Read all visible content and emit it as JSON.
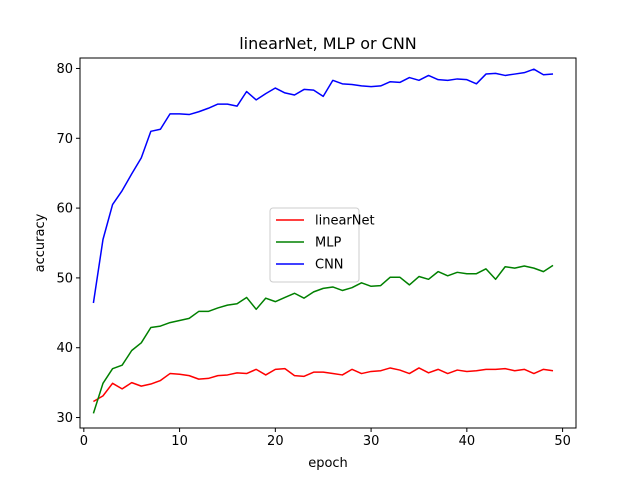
{
  "chart_data": {
    "type": "line",
    "title": "linearNet, MLP or CNN",
    "xlabel": "epoch",
    "ylabel": "accuracy",
    "xlim": [
      -0.4,
      51.4
    ],
    "ylim": [
      28.5,
      81.5
    ],
    "xticks": [
      0,
      10,
      20,
      30,
      40,
      50
    ],
    "yticks": [
      30,
      40,
      50,
      60,
      70,
      80
    ],
    "grid": false,
    "legend": "center-right",
    "x": [
      1,
      2,
      3,
      4,
      5,
      6,
      7,
      8,
      9,
      10,
      11,
      12,
      13,
      14,
      15,
      16,
      17,
      18,
      19,
      20,
      21,
      22,
      23,
      24,
      25,
      26,
      27,
      28,
      29,
      30,
      31,
      32,
      33,
      34,
      35,
      36,
      37,
      38,
      39,
      40,
      41,
      42,
      43,
      44,
      45,
      46,
      47,
      48,
      49
    ],
    "series": [
      {
        "name": "linearNet",
        "color": "#ff0000",
        "values": [
          32.3,
          33.1,
          34.9,
          34.1,
          35.0,
          34.5,
          34.8,
          35.3,
          36.3,
          36.2,
          36.0,
          35.5,
          35.6,
          36.0,
          36.1,
          36.4,
          36.3,
          36.9,
          36.1,
          36.9,
          37.0,
          36.0,
          35.9,
          36.5,
          36.5,
          36.3,
          36.1,
          36.9,
          36.3,
          36.6,
          36.7,
          37.1,
          36.8,
          36.3,
          37.1,
          36.4,
          36.9,
          36.3,
          36.8,
          36.6,
          36.7,
          36.9,
          36.9,
          37.0,
          36.7,
          36.9,
          36.3,
          36.9,
          36.7
        ]
      },
      {
        "name": "MLP",
        "color": "#008000",
        "values": [
          30.6,
          34.9,
          37.0,
          37.5,
          39.6,
          40.7,
          42.9,
          43.1,
          43.6,
          43.9,
          44.2,
          45.2,
          45.2,
          45.7,
          46.1,
          46.3,
          47.2,
          45.5,
          47.1,
          46.6,
          47.2,
          47.8,
          47.1,
          48.0,
          48.5,
          48.7,
          48.2,
          48.6,
          49.3,
          48.8,
          48.9,
          50.1,
          50.1,
          49.0,
          50.2,
          49.8,
          50.9,
          50.3,
          50.8,
          50.6,
          50.6,
          51.3,
          49.8,
          51.6,
          51.4,
          51.7,
          51.4,
          50.9,
          51.8
        ]
      },
      {
        "name": "CNN",
        "color": "#0000ff",
        "values": [
          46.4,
          55.5,
          60.5,
          62.5,
          64.9,
          67.2,
          71.0,
          71.3,
          73.5,
          73.5,
          73.4,
          73.8,
          74.3,
          74.9,
          74.9,
          74.6,
          76.7,
          75.5,
          76.4,
          77.2,
          76.5,
          76.2,
          77.0,
          76.9,
          76.0,
          78.3,
          77.8,
          77.7,
          77.5,
          77.4,
          77.5,
          78.1,
          78.0,
          78.7,
          78.3,
          79.0,
          78.4,
          78.3,
          78.5,
          78.4,
          77.8,
          79.2,
          79.3,
          79.0,
          79.2,
          79.4,
          79.9,
          79.1,
          79.2
        ]
      }
    ]
  }
}
